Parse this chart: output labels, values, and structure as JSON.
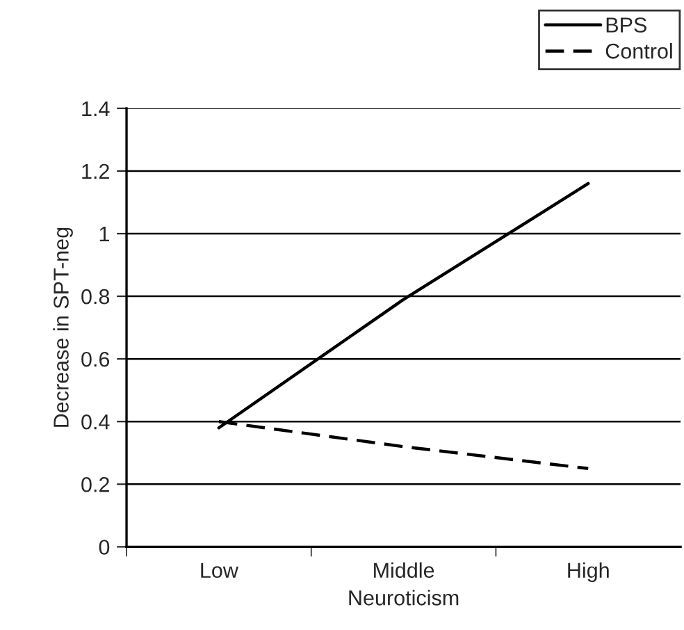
{
  "chart_data": {
    "type": "line",
    "xlabel": "Neuroticism",
    "ylabel": "Decrease in SPT-neg",
    "categories": [
      "Low",
      "Middle",
      "High"
    ],
    "series": [
      {
        "name": "BPS",
        "color": "#000000",
        "line_style": "solid",
        "values": [
          0.38,
          0.79,
          1.16
        ]
      },
      {
        "name": "Control",
        "color": "#000000",
        "line_style": "dashed",
        "values": [
          0.4,
          0.32,
          0.25
        ]
      }
    ],
    "ylim": [
      0,
      1.4
    ],
    "yticks": [
      0,
      0.2,
      0.4,
      0.6,
      0.8,
      1,
      1.2,
      1.4
    ],
    "grid": "y",
    "legend": "top right",
    "marker": "none"
  }
}
